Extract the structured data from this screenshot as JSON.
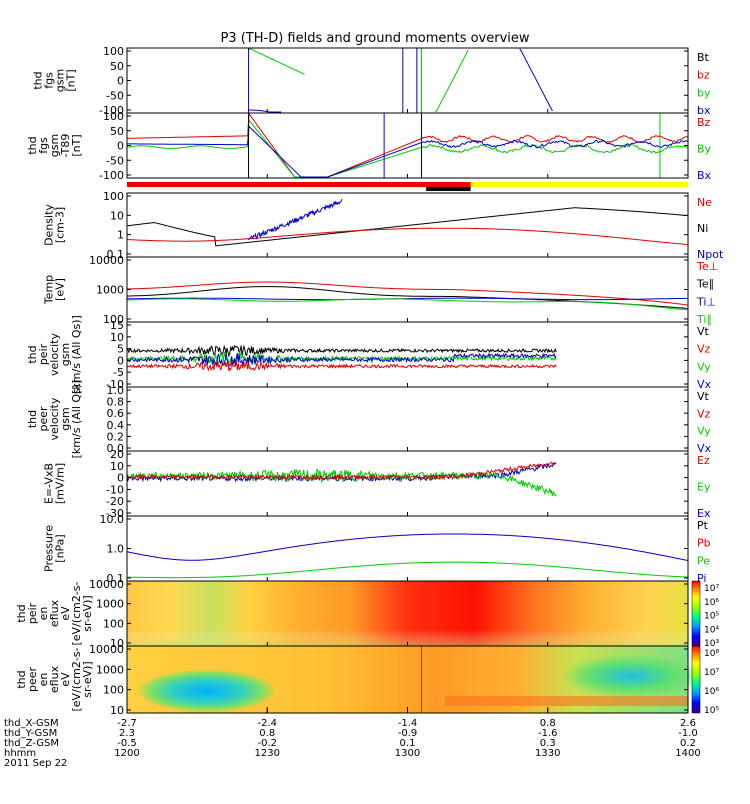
{
  "title": "P3 (TH-D) fields and ground moments overview",
  "colors": {
    "black": "#000000",
    "red": "#e00000",
    "green": "#00cc00",
    "blue": "#0000cc",
    "yellow": "#ffff00",
    "frame": "#000000"
  },
  "chart_data": {
    "type": "line",
    "x_ticks": [
      "1200",
      "1230",
      "1300",
      "1330",
      "1400"
    ],
    "x_range_minutes": [
      0,
      120
    ],
    "ephemeris": {
      "rows": [
        {
          "label": "thd_X-GSM",
          "values": [
            "-2.7",
            "-2.4",
            "-1.4",
            "0.8",
            "2.6"
          ]
        },
        {
          "label": "thd_Y-GSM",
          "values": [
            "2.3",
            "0.8",
            "-0.9",
            "-1.6",
            "-1.0"
          ]
        },
        {
          "label": "thd_Z-GSM",
          "values": [
            "-0.5",
            "-0.2",
            "0.1",
            "0.3",
            "0.2"
          ]
        },
        {
          "label": "hhmm",
          "values": [
            "1200",
            "1230",
            "1300",
            "1330",
            "1400"
          ]
        }
      ],
      "date": "2011 Sep 22"
    },
    "panels": [
      {
        "id": "fgs",
        "ylabel": [
          "thd",
          "fgs",
          "gsm",
          "[nT]"
        ],
        "y_ticks": [
          "100",
          "50",
          "0",
          "-50",
          "-100"
        ],
        "ylim": [
          -100,
          100
        ],
        "legend": [
          {
            "name": "Bt",
            "color": "#000000"
          },
          {
            "name": "bz",
            "color": "#e00000"
          },
          {
            "name": "by",
            "color": "#00cc00"
          },
          {
            "name": "bx",
            "color": "#0000cc"
          }
        ]
      },
      {
        "id": "fgs_t89",
        "ylabel": [
          "thd",
          "fgs",
          "gsm",
          "-T89",
          "[nT]"
        ],
        "y_ticks": [
          "100",
          "50",
          "0",
          "-50",
          "-100"
        ],
        "ylim": [
          -100,
          100
        ],
        "legend": [
          {
            "name": "Bz",
            "color": "#e00000"
          },
          {
            "name": "By",
            "color": "#00cc00"
          },
          {
            "name": "Bx",
            "color": "#0000cc"
          }
        ]
      },
      {
        "id": "density",
        "ylabel": [
          "Density",
          "[cm-3]"
        ],
        "y_ticks": [
          "100",
          "10",
          "1",
          "0.1"
        ],
        "scale": "log",
        "legend": [
          {
            "name": "Ne",
            "color": "#e00000"
          },
          {
            "name": "Ni",
            "color": "#000000"
          },
          {
            "name": "Npot",
            "color": "#0000cc"
          }
        ]
      },
      {
        "id": "temp",
        "ylabel": [
          "Temp",
          "[eV]"
        ],
        "y_ticks": [
          "10000",
          "1000",
          "100"
        ],
        "scale": "log",
        "legend": [
          {
            "name": "Te⊥",
            "color": "#e00000"
          },
          {
            "name": "Te∥",
            "color": "#000000"
          },
          {
            "name": "Ti⊥",
            "color": "#0000cc"
          },
          {
            "name": "Ti∥",
            "color": "#00cc00"
          }
        ]
      },
      {
        "id": "peir_vel",
        "ylabel": [
          "thd",
          "peir",
          "velocity",
          "gsm",
          "[km/s (All Qs)]"
        ],
        "y_ticks": [
          "15",
          "10",
          "5",
          "0",
          "-5",
          "-10"
        ],
        "ylim": [
          -10,
          15
        ],
        "legend": [
          {
            "name": "Vt",
            "color": "#000000"
          },
          {
            "name": "Vz",
            "color": "#e00000"
          },
          {
            "name": "Vy",
            "color": "#00cc00"
          },
          {
            "name": "Vx",
            "color": "#0000cc"
          }
        ]
      },
      {
        "id": "peer_vel",
        "ylabel": [
          "thd",
          "peer",
          "velocity",
          "gsm",
          "[km/s (All Qs)]"
        ],
        "y_ticks": [
          "1.0",
          "0.8",
          "0.6",
          "0.4",
          "0.2",
          "0.0"
        ],
        "ylim": [
          0,
          1
        ],
        "legend": [
          {
            "name": "Vt",
            "color": "#000000"
          },
          {
            "name": "Vz",
            "color": "#e00000"
          },
          {
            "name": "Vy",
            "color": "#00cc00"
          },
          {
            "name": "Vx",
            "color": "#0000cc"
          }
        ]
      },
      {
        "id": "efield",
        "ylabel": [
          "E=-VxB",
          "[mV/m]"
        ],
        "y_ticks": [
          "20",
          "10",
          "0",
          "-10",
          "-20",
          "-30"
        ],
        "ylim": [
          -30,
          20
        ],
        "legend": [
          {
            "name": "Ez",
            "color": "#e00000"
          },
          {
            "name": "Ey",
            "color": "#00cc00"
          },
          {
            "name": "Ex",
            "color": "#0000cc"
          }
        ]
      },
      {
        "id": "pressure",
        "ylabel": [
          "Pressure",
          "[nPa]"
        ],
        "y_ticks": [
          "10.0",
          "1.0",
          "0.1"
        ],
        "scale": "log",
        "legend": [
          {
            "name": "Pt",
            "color": "#000000"
          },
          {
            "name": "Pb",
            "color": "#e00000"
          },
          {
            "name": "Pe",
            "color": "#00cc00"
          },
          {
            "name": "Pi",
            "color": "#0000cc"
          }
        ]
      },
      {
        "id": "peir_spec",
        "ylabel": [
          "thd",
          "peir",
          "en",
          "eflux",
          "eV",
          "[eV/(cm2-s-",
          "sr-eV)]"
        ],
        "y_ticks": [
          "10000",
          "1000",
          "100",
          "10"
        ],
        "colorbar_ticks": [
          "10⁷",
          "10⁶",
          "10⁵",
          "10⁴",
          "10³"
        ]
      },
      {
        "id": "peer_spec",
        "ylabel": [
          "thd",
          "peer",
          "en",
          "eflux",
          "eV",
          "[eV/(cm2-s-",
          "sr-eV)]"
        ],
        "y_ticks": [
          "10000",
          "1000",
          "100",
          "10"
        ],
        "colorbar_ticks": [
          "10⁸",
          "10⁷",
          "10⁶",
          "10⁵"
        ]
      }
    ]
  }
}
